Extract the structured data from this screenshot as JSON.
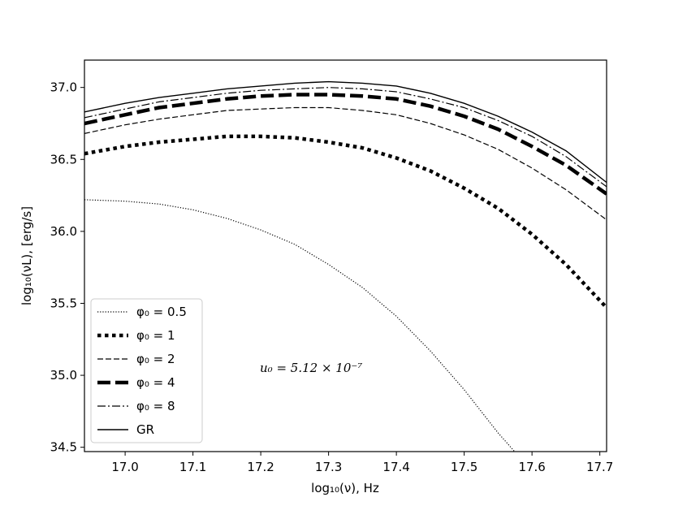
{
  "chart_data": {
    "type": "line",
    "xlabel": "log₁₀(ν),  Hz",
    "ylabel": "log₁₀(νL),  [erg/s]",
    "xlim": [
      16.94,
      17.71
    ],
    "ylim": [
      34.47,
      37.19
    ],
    "xticks": [
      "17.0",
      "17.1",
      "17.2",
      "17.3",
      "17.4",
      "17.5",
      "17.6",
      "17.7"
    ],
    "yticks": [
      "34.5",
      "35.0",
      "35.5",
      "36.0",
      "36.5",
      "37.0"
    ],
    "annotation": "u₀ = 5.12 × 10⁻⁷",
    "legend_position": "lower-left",
    "grid": false,
    "series": [
      {
        "name": "φ₀ = 0.5",
        "style": "dotted-thin",
        "x": [
          16.94,
          17.0,
          17.05,
          17.1,
          17.15,
          17.2,
          17.25,
          17.3,
          17.35,
          17.4,
          17.45,
          17.5,
          17.55,
          17.58
        ],
        "y": [
          36.22,
          36.21,
          36.19,
          36.15,
          36.09,
          36.01,
          35.91,
          35.77,
          35.61,
          35.41,
          35.17,
          34.9,
          34.6,
          34.44
        ]
      },
      {
        "name": "φ₀ = 1",
        "style": "dotted-thick",
        "x": [
          16.94,
          17.0,
          17.05,
          17.1,
          17.15,
          17.2,
          17.25,
          17.3,
          17.35,
          17.4,
          17.45,
          17.5,
          17.55,
          17.6,
          17.65,
          17.71
        ],
        "y": [
          36.54,
          36.59,
          36.62,
          36.64,
          36.66,
          36.66,
          36.65,
          36.62,
          36.58,
          36.51,
          36.42,
          36.3,
          36.16,
          35.98,
          35.77,
          35.47
        ]
      },
      {
        "name": "φ₀ = 2",
        "style": "dashed-thin",
        "x": [
          16.94,
          17.0,
          17.05,
          17.1,
          17.15,
          17.2,
          17.25,
          17.3,
          17.35,
          17.4,
          17.45,
          17.5,
          17.55,
          17.6,
          17.65,
          17.71
        ],
        "y": [
          36.68,
          36.74,
          36.78,
          36.81,
          36.84,
          36.85,
          36.86,
          36.86,
          36.84,
          36.81,
          36.75,
          36.67,
          36.57,
          36.44,
          36.29,
          36.08
        ]
      },
      {
        "name": "φ₀ = 4",
        "style": "dashed-thick",
        "x": [
          16.94,
          17.0,
          17.05,
          17.1,
          17.15,
          17.2,
          17.25,
          17.3,
          17.35,
          17.4,
          17.45,
          17.5,
          17.55,
          17.6,
          17.65,
          17.71
        ],
        "y": [
          36.75,
          36.81,
          36.86,
          36.89,
          36.92,
          36.94,
          36.95,
          36.95,
          36.94,
          36.92,
          36.87,
          36.8,
          36.71,
          36.59,
          36.46,
          36.26
        ]
      },
      {
        "name": "φ₀ = 8",
        "style": "dashdot",
        "x": [
          16.94,
          17.0,
          17.05,
          17.1,
          17.15,
          17.2,
          17.25,
          17.3,
          17.35,
          17.4,
          17.45,
          17.5,
          17.55,
          17.6,
          17.65,
          17.71
        ],
        "y": [
          36.79,
          36.85,
          36.9,
          36.93,
          36.96,
          36.98,
          36.99,
          37.0,
          36.99,
          36.97,
          36.92,
          36.86,
          36.77,
          36.66,
          36.52,
          36.31
        ]
      },
      {
        "name": "GR",
        "style": "solid",
        "x": [
          16.94,
          17.0,
          17.05,
          17.1,
          17.15,
          17.2,
          17.25,
          17.3,
          17.35,
          17.4,
          17.45,
          17.5,
          17.55,
          17.6,
          17.65,
          17.71
        ],
        "y": [
          36.83,
          36.89,
          36.93,
          36.96,
          36.99,
          37.01,
          37.03,
          37.04,
          37.03,
          37.01,
          36.96,
          36.89,
          36.8,
          36.69,
          36.56,
          36.34
        ]
      }
    ]
  }
}
